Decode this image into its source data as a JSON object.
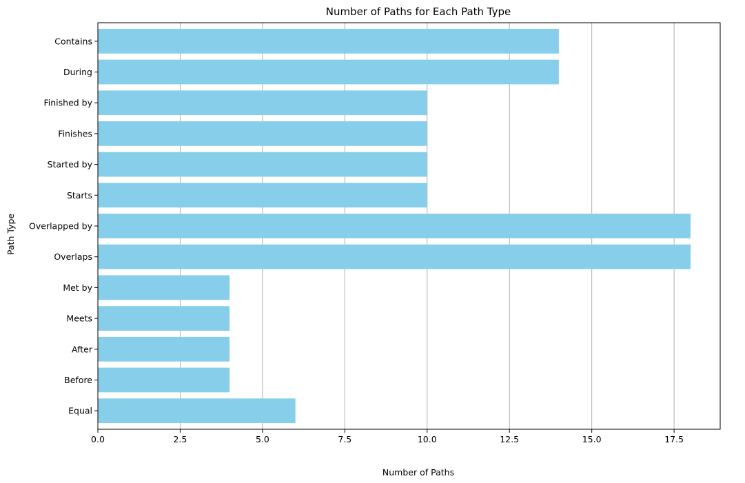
{
  "chart_data": {
    "type": "bar",
    "orientation": "horizontal",
    "title": "Number of Paths for Each Path Type",
    "xlabel": "Number of Paths",
    "ylabel": "Path Type",
    "categories": [
      "Equal",
      "Before",
      "After",
      "Meets",
      "Met by",
      "Overlaps",
      "Overlapped by",
      "Starts",
      "Started by",
      "Finishes",
      "Finished by",
      "During",
      "Contains"
    ],
    "values": [
      6,
      4,
      4,
      4,
      4,
      18,
      18,
      10,
      10,
      10,
      10,
      14,
      14
    ],
    "xlim": [
      0,
      18.9
    ],
    "xticks": [
      0.0,
      2.5,
      5.0,
      7.5,
      10.0,
      12.5,
      15.0,
      17.5
    ],
    "xtick_labels": [
      "0.0",
      "2.5",
      "5.0",
      "7.5",
      "10.0",
      "12.5",
      "15.0",
      "17.5"
    ],
    "grid": "x-axis vertical lines",
    "bar_color": "#87ceeb",
    "grid_color": "#b0b0b0"
  }
}
